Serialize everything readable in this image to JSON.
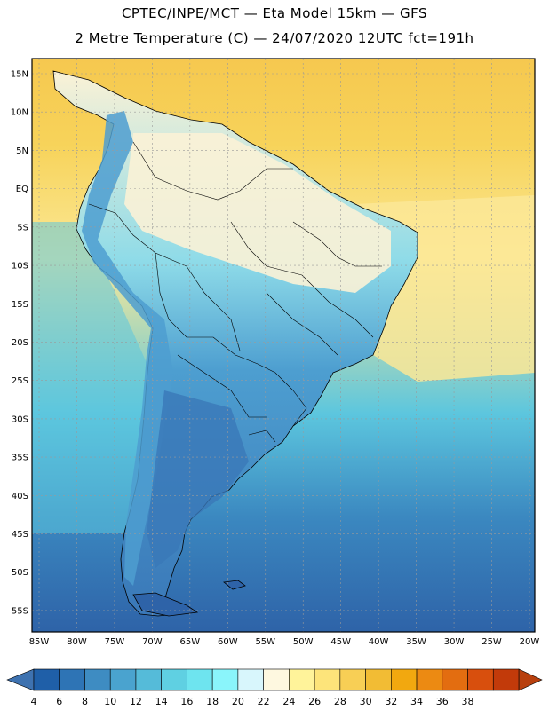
{
  "header": {
    "title": "CPTEC/INPE/MCT —  Eta Model 15km — GFS",
    "subtitle": "2 Metre Temperature (C) — 24/07/2020 12UTC fct=191h"
  },
  "map": {
    "lat_labels": [
      "15N",
      "10N",
      "5N",
      "EQ",
      "5S",
      "10S",
      "15S",
      "20S",
      "25S",
      "30S",
      "35S",
      "40S",
      "45S",
      "50S",
      "55S"
    ],
    "lon_labels": [
      "85W",
      "80W",
      "75W",
      "70W",
      "65W",
      "60W",
      "55W",
      "50W",
      "45W",
      "40W",
      "35W",
      "30W",
      "25W",
      "20W"
    ],
    "ocean_colors": {
      "north_warm": "#f6c84f",
      "north_mid": "#f7d35a",
      "equatorial": "#fbe896",
      "south_cool": "#5cc6de",
      "south_cold": "#3b88c0",
      "south_coldest": "#2e63a8"
    },
    "land_colors": {
      "amazon": "#fbf2d6",
      "andes": "#4d9ed0",
      "patagonia": "#3a78b8",
      "central": "#8edbe8"
    }
  },
  "colorbar": {
    "labels": [
      "4",
      "6",
      "8",
      "10",
      "12",
      "14",
      "16",
      "18",
      "20",
      "22",
      "24",
      "26",
      "28",
      "30",
      "32",
      "34",
      "36",
      "38"
    ],
    "colors": [
      "#1f5fa8",
      "#2e74b5",
      "#3e8cc2",
      "#4aa3cf",
      "#55bbd9",
      "#5fd0e2",
      "#6ee4ef",
      "#8af5fb",
      "#d8f6fc",
      "#fef8e0",
      "#fff39a",
      "#fde47a",
      "#f8cf55",
      "#f2bc34",
      "#f2a80f",
      "#ec8a12",
      "#e36d10",
      "#d84f0d",
      "#c23a0a"
    ],
    "arrow_left": "#3e72b0",
    "arrow_right": "#b8400e"
  }
}
